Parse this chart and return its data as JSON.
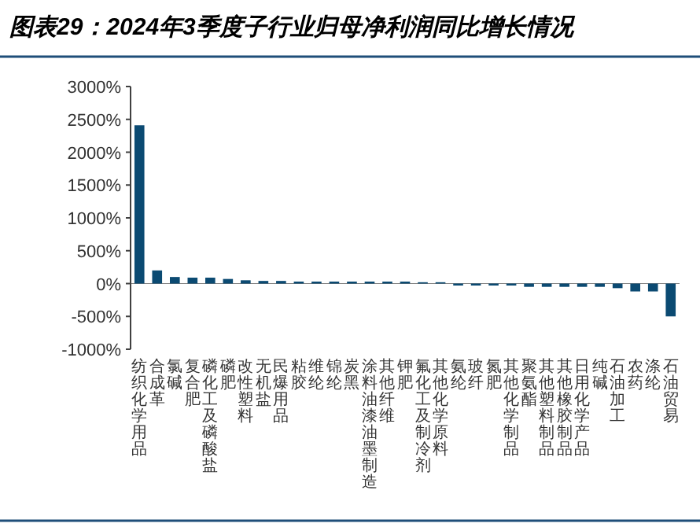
{
  "chart_data": {
    "type": "bar",
    "title": "图表29：2024年3季度子行业归母净利润同比增长情况",
    "categories": [
      "纺织化学用品",
      "合成革",
      "氯碱",
      "复合肥",
      "磷化工及磷酸盐",
      "磷肥",
      "改性塑料",
      "无机盐",
      "民爆用品",
      "粘胶",
      "维纶",
      "锦纶",
      "炭黑",
      "涂料油漆油墨制造",
      "其他纤维",
      "钾肥",
      "氟化工及制冷剂",
      "其他化学原料",
      "氨纶",
      "玻纤",
      "氮肥",
      "其他化学制品",
      "聚氨酯",
      "其他塑料制品",
      "其他橡胶制品",
      "日用化学产品",
      "纯碱",
      "石油加工",
      "农药",
      "涤纶",
      "石油贸易"
    ],
    "values": [
      2410,
      200,
      100,
      90,
      90,
      70,
      50,
      40,
      40,
      30,
      30,
      30,
      30,
      30,
      30,
      30,
      20,
      20,
      -30,
      -30,
      -30,
      -30,
      -50,
      -50,
      -50,
      -50,
      -50,
      -70,
      -120,
      -120,
      -500
    ],
    "color": "#0b4a72",
    "ylim": [
      -1000,
      3000
    ],
    "yticks": [
      {
        "value": 3000,
        "label": "3000%"
      },
      {
        "value": 2500,
        "label": "2500%"
      },
      {
        "value": 2000,
        "label": "2000%"
      },
      {
        "value": 1500,
        "label": "1500%"
      },
      {
        "value": 1000,
        "label": "1000%"
      },
      {
        "value": 500,
        "label": "500%"
      },
      {
        "value": 0,
        "label": "0%"
      },
      {
        "value": -500,
        "label": "-500%"
      },
      {
        "value": -1000,
        "label": "-1000%"
      }
    ]
  }
}
